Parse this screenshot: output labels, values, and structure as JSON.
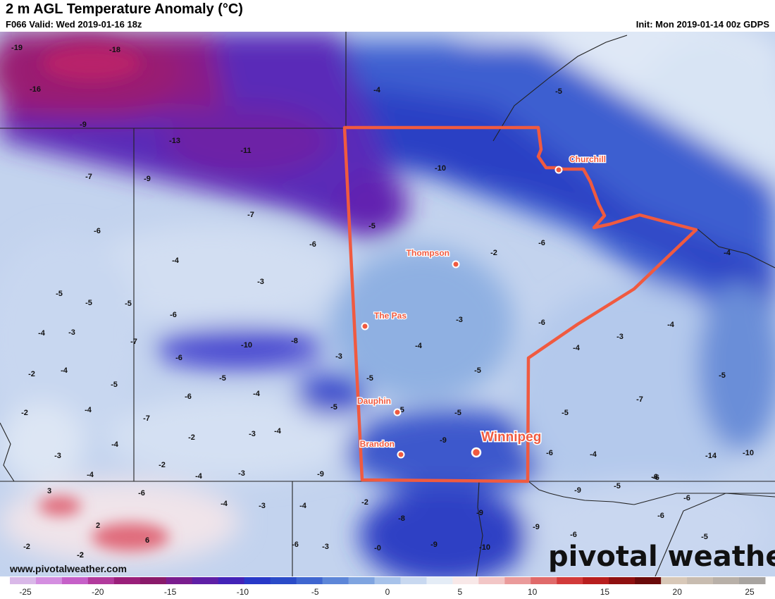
{
  "header": {
    "title": "2 m AGL Temperature Anomaly (°C)",
    "valid": "F066 Valid: Wed 2019-01-16 18z",
    "init": "Init: Mon 2019-01-14 00z GDPS"
  },
  "footer": {
    "url": "www.pivotalweather.com",
    "brand": "pivotal weather"
  },
  "cities": [
    {
      "name": "Churchill"
    },
    {
      "name": "Thompson"
    },
    {
      "name": "The Pas"
    },
    {
      "name": "Dauphin"
    },
    {
      "name": "Brandon"
    },
    {
      "name": "Winnipeg"
    }
  ],
  "field_labels": [
    "-19",
    "-18",
    "-16",
    "-9",
    "-13",
    "-11",
    "-9",
    "-7",
    "-6",
    "-7",
    "-6",
    "-4",
    "-3",
    "-5",
    "-5",
    "-5",
    "-6",
    "-4",
    "-3",
    "-7",
    "-10",
    "-8",
    "-3",
    "-4",
    "-2",
    "-6",
    "-5",
    "-5",
    "-2",
    "-4",
    "-6",
    "-7",
    "-2",
    "-3",
    "-4",
    "-4",
    "-3",
    "-4",
    "-4",
    "-4",
    "-3",
    "-2",
    "-6",
    "-4",
    "-3",
    "-4",
    "-3",
    "-6",
    "-2",
    "-0",
    "-2",
    "-8",
    "-9",
    "-9",
    "-10",
    "-9",
    "-9",
    "-9",
    "-6",
    "-5",
    "-4",
    "-6",
    "-5",
    "-6",
    "-6",
    "-5",
    "-6",
    "-7",
    "-6",
    "-10",
    "-14",
    "-5",
    "-9",
    "-5",
    "-10",
    "-5",
    "-4",
    "-5",
    "-4",
    "-6",
    "-4",
    "-3",
    "-4",
    "-6",
    "-5",
    "-4",
    "-3",
    "-2",
    "-5",
    "-2",
    "3",
    "2",
    "6",
    "-2",
    "-5",
    "-5"
  ],
  "colorbar": {
    "ticks": [
      "-25",
      "-20",
      "-15",
      "-10",
      "-5",
      "0",
      "5",
      "10",
      "15",
      "20",
      "25"
    ],
    "colors": [
      "#d9b8e8",
      "#d48ee0",
      "#c660c8",
      "#b23a9c",
      "#9a1f7a",
      "#8a1a6a",
      "#7a1d8e",
      "#5f1fa6",
      "#4323b8",
      "#2838c8",
      "#2a4bc8",
      "#3f66d0",
      "#5d86d8",
      "#7fa4e0",
      "#a7c2ea",
      "#c8d8f0",
      "#e4ecf6",
      "#f8e8e8",
      "#f2c6c6",
      "#ea9a9a",
      "#e06a6a",
      "#d23a3a",
      "#b81e1e",
      "#8f1010",
      "#6a0a0a",
      "#d8c8b8",
      "#c8bcb0",
      "#b8b0a8",
      "#a8a4a0"
    ]
  }
}
